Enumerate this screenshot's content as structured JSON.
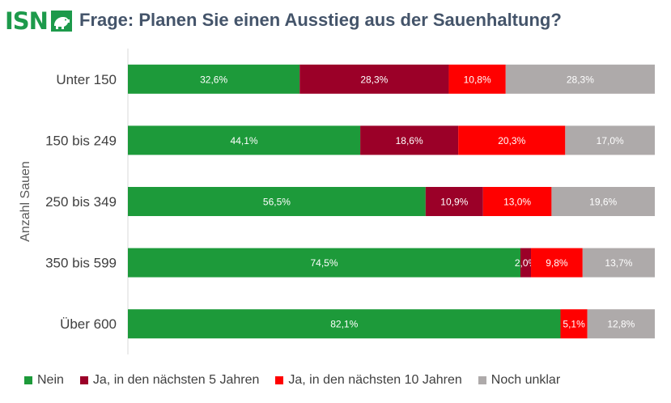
{
  "logo": {
    "text": "ISN"
  },
  "title": "Frage: Planen Sie einen Ausstieg aus der Sauenhaltung?",
  "chart_data": {
    "type": "bar",
    "orientation": "horizontal",
    "stacked": true,
    "percent_stacked": true,
    "ylabel": "Anzahl Sauen",
    "xlabel": "",
    "xlim": [
      0,
      100
    ],
    "grid": false,
    "legend_position": "bottom",
    "categories": [
      "Unter 150",
      "150 bis 249",
      "250 bis 349",
      "350 bis 599",
      "Über 600"
    ],
    "series": [
      {
        "name": "Nein",
        "color": "#1d9a3a",
        "label_color": "#ffffff",
        "values": [
          32.6,
          44.1,
          56.5,
          74.5,
          82.1
        ],
        "labels": [
          "32,6%",
          "44,1%",
          "56,5%",
          "74,5%",
          "82,1%"
        ]
      },
      {
        "name": "Ja, in den nächsten 5 Jahren",
        "color": "#9b0028",
        "label_color": "#ffffff",
        "values": [
          28.3,
          18.6,
          10.9,
          2.0,
          0
        ],
        "labels": [
          "28,3%",
          "18,6%",
          "10,9%",
          "2,0%",
          ""
        ]
      },
      {
        "name": "Ja, in den nächsten 10 Jahren",
        "color": "#ff0000",
        "label_color": "#ffffff",
        "values": [
          10.8,
          20.3,
          13.0,
          9.8,
          5.1
        ],
        "labels": [
          "10,8%",
          "20,3%",
          "13,0%",
          "9,8%",
          "5,1%"
        ]
      },
      {
        "name": "Noch unklar",
        "color": "#aeaaaa",
        "label_color": "#ffffff",
        "values": [
          28.3,
          17.0,
          19.6,
          13.7,
          12.8
        ],
        "labels": [
          "28,3%",
          "17,0%",
          "19,6%",
          "13,7%",
          "12,8%"
        ]
      }
    ]
  }
}
